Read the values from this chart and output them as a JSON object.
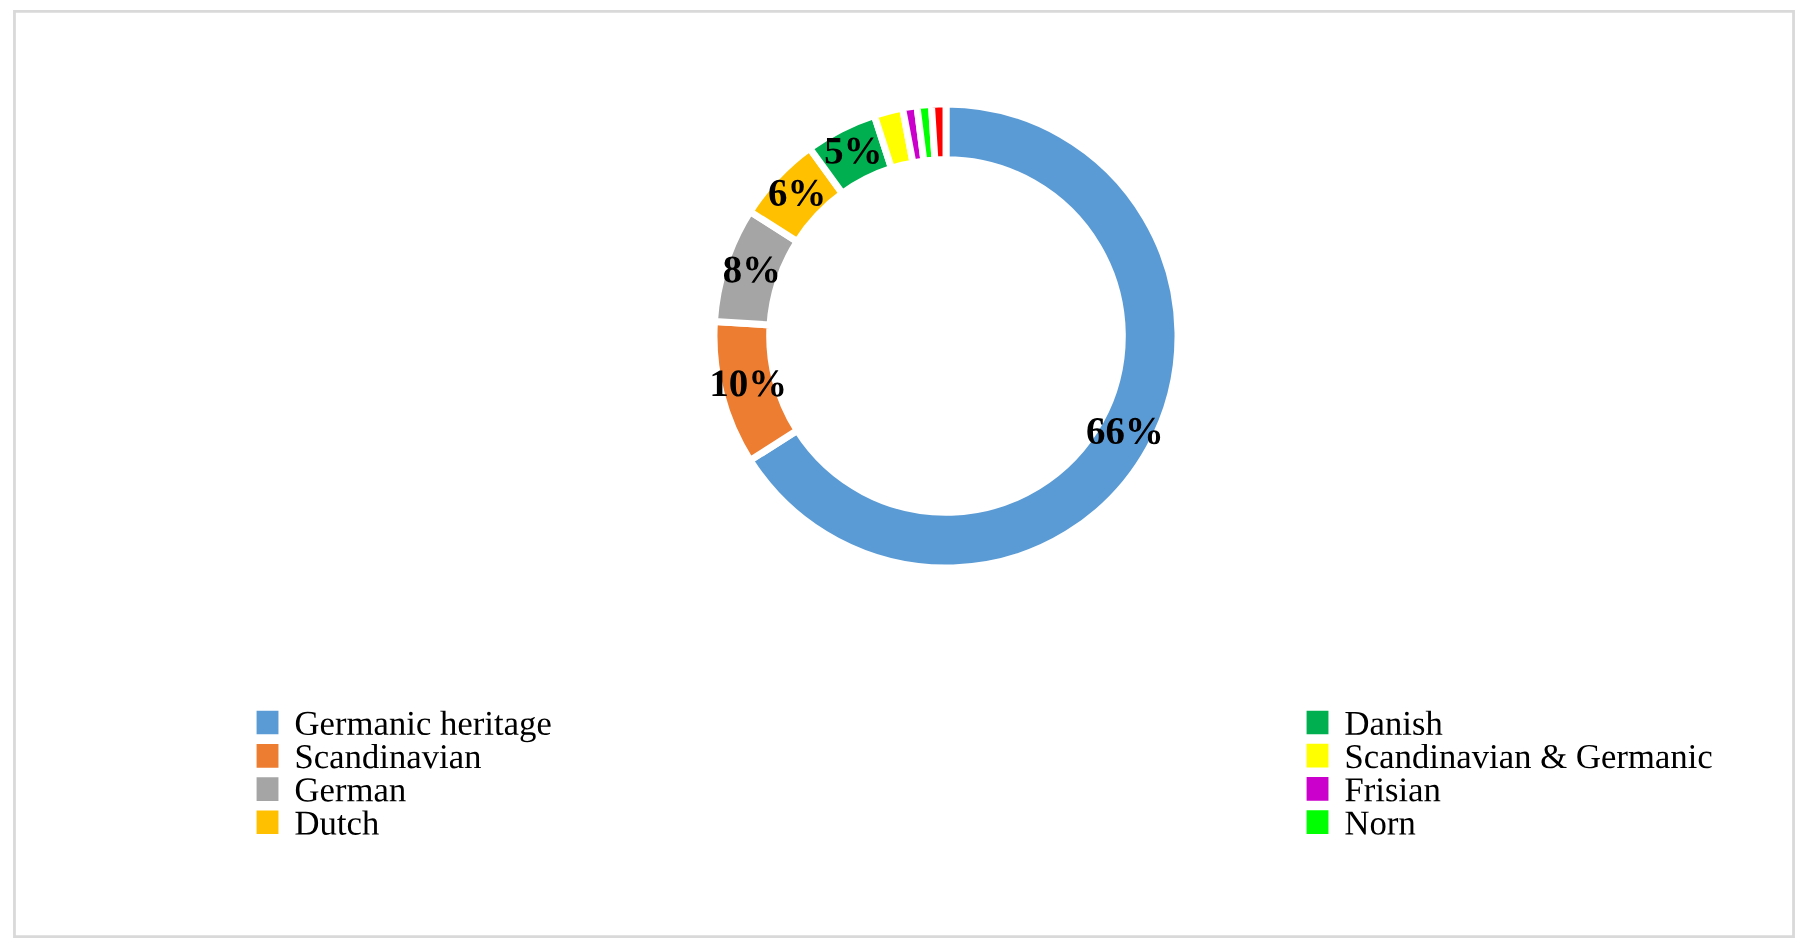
{
  "chart_data": {
    "type": "donut",
    "categories": [
      "Germanic heritage",
      "Scandinavian",
      "German",
      "Dutch",
      "Danish",
      "Scandinavian & Germanic",
      "Frisian",
      "Norn",
      null
    ],
    "values": [
      66,
      10,
      8,
      6,
      5,
      2,
      1,
      1,
      1
    ],
    "colors": [
      "#5b9bd5",
      "#ed7d31",
      "#a5a5a5",
      "#ffc000",
      "#00b050",
      "#ffff00",
      "#cc00cc",
      "#00ff00",
      "#ff0000"
    ],
    "value_labels": [
      "66%",
      "10%",
      "8%",
      "6%",
      "5%",
      null,
      null,
      null,
      null
    ],
    "legend": "bottom"
  }
}
